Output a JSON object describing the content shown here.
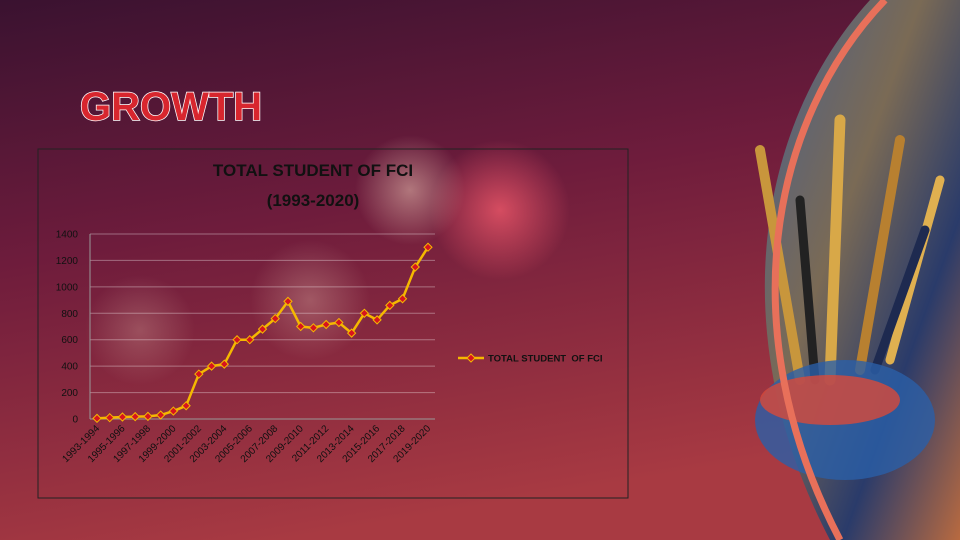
{
  "slide_title": "GROWTH",
  "chart_data": {
    "type": "line",
    "title": "TOTAL STUDENT OF FCI",
    "subtitle": "(1993-2020)",
    "categories": [
      "1993-1994",
      null,
      "1995-1996",
      null,
      "1997-1998",
      null,
      "1999-2000",
      null,
      "2001-2002",
      null,
      "2003-2004",
      null,
      "2005-2006",
      null,
      "2007-2008",
      null,
      "2009-2010",
      null,
      "2011-2012",
      null,
      "2013-2014",
      null,
      "2015-2016",
      null,
      "2017-2018",
      null,
      "2019-2020"
    ],
    "series": [
      {
        "name": "TOTAL STUDENT  OF FCI",
        "color": "#f5b800",
        "marker_color": "#d7141e",
        "values": [
          5,
          10,
          15,
          18,
          20,
          30,
          60,
          100,
          340,
          400,
          415,
          600,
          600,
          680,
          760,
          890,
          700,
          690,
          715,
          730,
          650,
          800,
          750,
          860,
          910,
          1150,
          1300
        ]
      }
    ],
    "ylim": [
      0,
      1400
    ],
    "yticks": [
      0,
      200,
      400,
      600,
      800,
      1000,
      1200,
      1400
    ],
    "grid": true,
    "legend": "right"
  }
}
